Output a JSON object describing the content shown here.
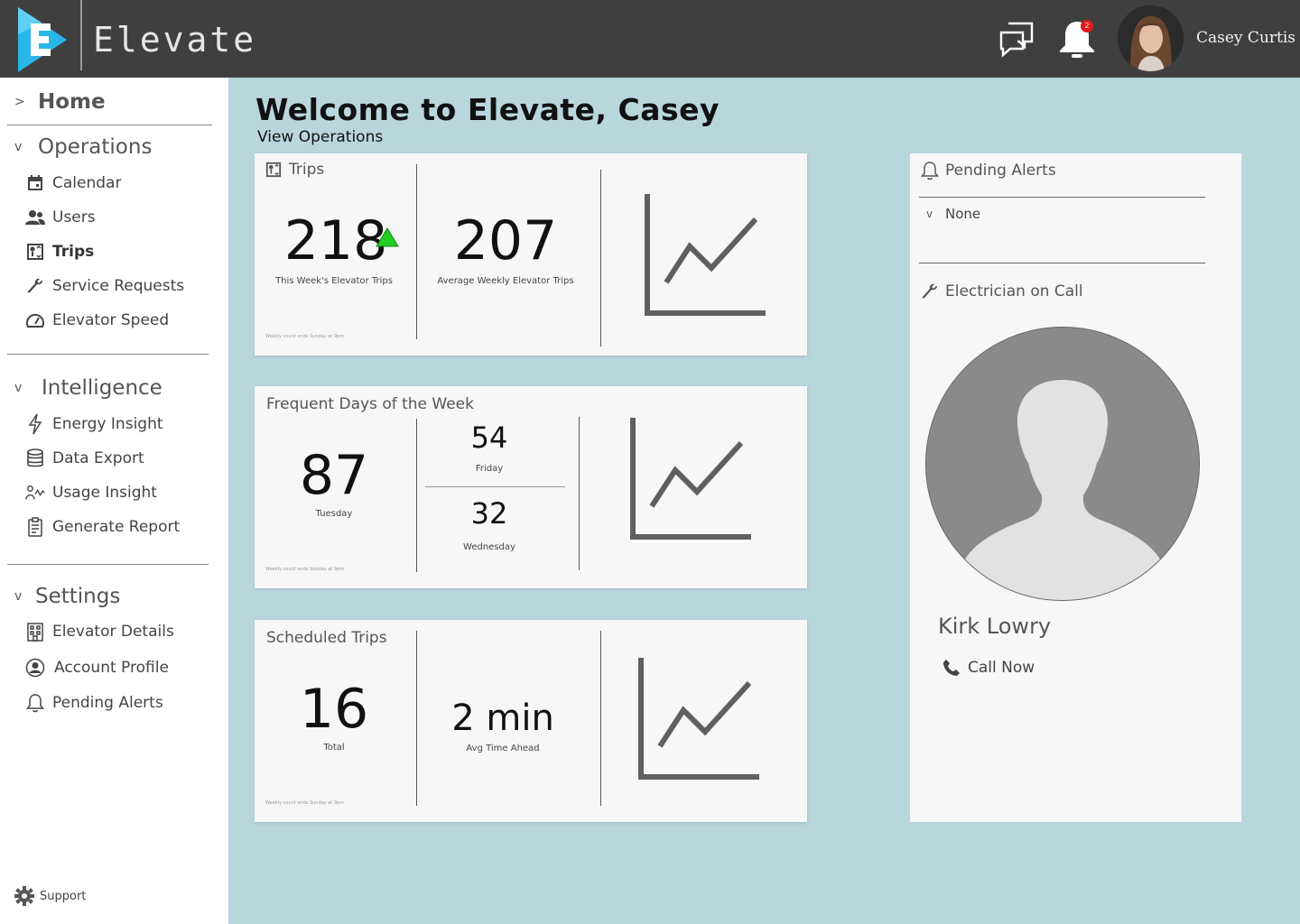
{
  "header": {
    "app_title": "Elevate",
    "user_name": "Casey Curtis",
    "notification_count": "2",
    "colors": {
      "topbar": "#3f3f3f",
      "logo_blue": "#29b6e8",
      "badge": "#e31b1b"
    },
    "icons": [
      "elevate-logo-icon",
      "chat-icon",
      "bell-icon"
    ]
  },
  "sidebar": {
    "home": {
      "caret": ">",
      "label": "Home"
    },
    "sections": [
      {
        "caret": "v",
        "label": "Operations",
        "items": [
          {
            "label": "Calendar",
            "icon": "calendar-icon"
          },
          {
            "label": "Users",
            "icon": "users-icon"
          },
          {
            "label": "Trips",
            "icon": "elevator-icon",
            "active": true
          },
          {
            "label": "Service Requests",
            "icon": "wrench-icon"
          },
          {
            "label": "Elevator Speed",
            "icon": "speedometer-icon"
          }
        ]
      },
      {
        "caret": "v",
        "label": "Intelligence",
        "items": [
          {
            "label": "Energy Insight",
            "icon": "lightning-icon"
          },
          {
            "label": "Data Export",
            "icon": "database-icon"
          },
          {
            "label": "Usage Insight",
            "icon": "usage-icon"
          },
          {
            "label": "Generate Report",
            "icon": "clipboard-icon"
          }
        ]
      },
      {
        "caret": "v",
        "label": "Settings",
        "items": [
          {
            "label": "Elevator Details",
            "icon": "building-icon"
          },
          {
            "label": "Account Profile",
            "icon": "account-icon"
          },
          {
            "label": "Pending Alerts",
            "icon": "bell-outline-icon"
          }
        ]
      }
    ],
    "support_label": "Support"
  },
  "main": {
    "welcome": "Welcome to Elevate, Casey",
    "subtitle": "View Operations",
    "footnote": "Weekly count ends Sunday at 9pm",
    "trips": {
      "title": "Trips",
      "week_value": "218",
      "week_caption": "This Week's Elevator Trips",
      "trend": "up",
      "avg_value": "207",
      "avg_caption": "Average Weekly Elevator Trips"
    },
    "frequent": {
      "title": "Frequent Days of the Week",
      "top_value": "87",
      "top_caption": "Tuesday",
      "second_value": "54",
      "second_caption": "Friday",
      "third_value": "32",
      "third_caption": "Wednesday"
    },
    "scheduled": {
      "title": "Scheduled Trips",
      "total_value": "16",
      "total_caption": "Total",
      "ahead_value": "2 min",
      "ahead_caption": "Avg Time Ahead"
    }
  },
  "right_panel": {
    "alerts_title": "Pending Alerts",
    "alerts_caret": "v",
    "alerts_value": "None",
    "electrician_title": "Electrician on Call",
    "electrician_name": "Kirk Lowry",
    "call_label": "Call Now"
  }
}
